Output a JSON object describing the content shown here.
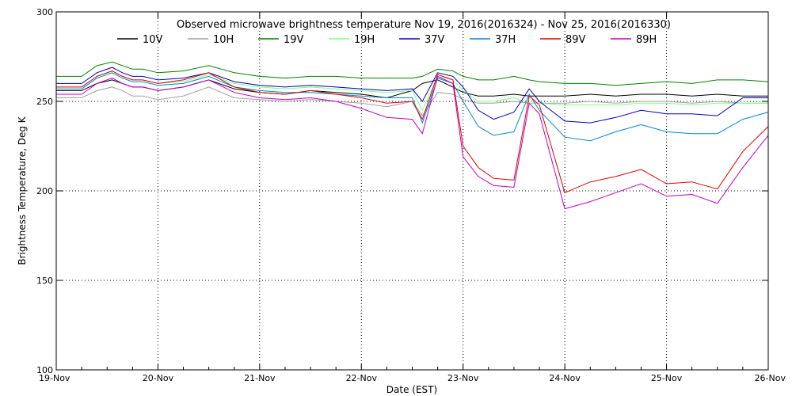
{
  "chart_data": {
    "type": "line",
    "title": "Observed microwave brightness temperature Nov 19, 2016(2016324) - Nov 25, 2016(2016330)",
    "xlabel": "Date (EST)",
    "ylabel": "Brightness Temperature, Deg K",
    "xlim": [
      0,
      7
    ],
    "ylim": [
      100,
      300
    ],
    "x_tick_labels": [
      "19-Nov",
      "20-Nov",
      "21-Nov",
      "22-Nov",
      "23-Nov",
      "24-Nov",
      "25-Nov",
      "26-Nov"
    ],
    "y_ticks": [
      100,
      150,
      200,
      250,
      300
    ],
    "grid": true,
    "legend_position": "top",
    "x": [
      0,
      0.25,
      0.4,
      0.55,
      0.65,
      0.75,
      0.85,
      1.0,
      1.25,
      1.5,
      1.75,
      2.0,
      2.25,
      2.5,
      2.75,
      3.0,
      3.25,
      3.5,
      3.6,
      3.75,
      3.9,
      4.0,
      4.15,
      4.3,
      4.5,
      4.65,
      4.75,
      5.0,
      5.25,
      5.5,
      5.75,
      6.0,
      6.25,
      6.5,
      6.75,
      7.0
    ],
    "series": [
      {
        "name": "10V",
        "color": "#000000",
        "values": [
          256,
          256,
          260,
          262,
          260,
          258,
          258,
          256,
          258,
          262,
          257,
          255,
          254,
          256,
          255,
          254,
          252,
          256,
          260,
          262,
          258,
          255,
          253,
          253,
          254,
          253,
          253,
          253,
          254,
          253,
          254,
          254,
          253,
          254,
          253,
          253
        ]
      },
      {
        "name": "10H",
        "color": "#a0a0a0",
        "values": [
          252,
          252,
          256,
          258,
          256,
          253,
          253,
          251,
          253,
          258,
          252,
          251,
          250,
          251,
          250,
          249,
          247,
          250,
          242,
          255,
          254,
          251,
          249,
          249,
          250,
          249,
          249,
          249,
          250,
          249,
          250,
          250,
          249,
          250,
          249,
          249
        ]
      },
      {
        "name": "19V",
        "color": "#008000",
        "values": [
          264,
          264,
          270,
          272,
          270,
          268,
          268,
          266,
          267,
          270,
          266,
          264,
          263,
          264,
          264,
          263,
          263,
          263,
          264,
          268,
          267,
          264,
          262,
          262,
          264,
          262,
          261,
          260,
          260,
          259,
          260,
          261,
          260,
          262,
          262,
          261
        ]
      },
      {
        "name": "19H",
        "color": "#80ff80",
        "values": [
          258,
          258,
          264,
          267,
          264,
          262,
          262,
          260,
          261,
          265,
          260,
          258,
          257,
          258,
          257,
          256,
          255,
          256,
          245,
          264,
          262,
          256,
          250,
          250,
          252,
          249,
          249,
          248,
          248,
          248,
          249,
          249,
          248,
          249,
          249,
          249
        ]
      },
      {
        "name": "37V",
        "color": "#0000c0",
        "values": [
          260,
          260,
          266,
          269,
          266,
          264,
          264,
          262,
          263,
          266,
          261,
          259,
          258,
          259,
          258,
          257,
          256,
          257,
          250,
          266,
          264,
          258,
          245,
          240,
          244,
          257,
          250,
          239,
          238,
          241,
          245,
          243,
          243,
          242,
          252,
          252
        ]
      },
      {
        "name": "37H",
        "color": "#0088cc",
        "values": [
          257,
          257,
          263,
          266,
          263,
          261,
          261,
          259,
          260,
          264,
          258,
          256,
          255,
          255,
          254,
          253,
          252,
          252,
          238,
          263,
          260,
          250,
          236,
          231,
          233,
          254,
          245,
          230,
          228,
          233,
          237,
          233,
          232,
          232,
          240,
          244
        ]
      },
      {
        "name": "89V",
        "color": "#e00000",
        "values": [
          258,
          258,
          264,
          267,
          264,
          262,
          262,
          260,
          262,
          266,
          258,
          255,
          254,
          256,
          254,
          252,
          249,
          250,
          240,
          265,
          262,
          225,
          213,
          207,
          206,
          253,
          248,
          199,
          205,
          208,
          212,
          204,
          205,
          201,
          222,
          236
        ]
      },
      {
        "name": "89H",
        "color": "#c000c0",
        "values": [
          254,
          254,
          260,
          263,
          260,
          258,
          258,
          256,
          258,
          262,
          255,
          252,
          251,
          252,
          250,
          246,
          241,
          240,
          232,
          264,
          260,
          219,
          208,
          203,
          202,
          249,
          243,
          190,
          194,
          199,
          204,
          197,
          198,
          193,
          213,
          231
        ]
      }
    ]
  }
}
